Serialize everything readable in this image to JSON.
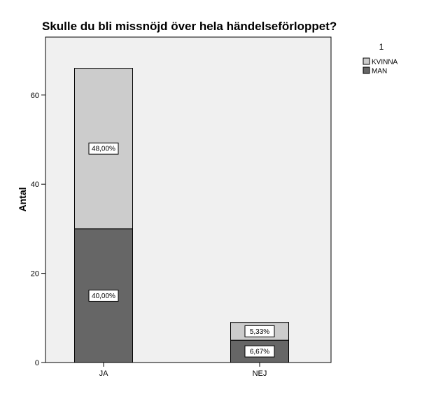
{
  "chart_data": {
    "type": "bar",
    "stacked": true,
    "title": "Skulle du bli missnöjd över hela händelseförloppet?",
    "xlabel": "",
    "ylabel": "Antal",
    "categories": [
      "JA",
      "NEJ"
    ],
    "ylim": [
      0,
      73
    ],
    "yticks": [
      0,
      20,
      40,
      60
    ],
    "grid": false,
    "legend": {
      "title": "1",
      "position": "top-right"
    },
    "series": [
      {
        "name": "MAN",
        "color": "#666666",
        "values": [
          30,
          5
        ],
        "labels": [
          "40,00%",
          "6,67%"
        ]
      },
      {
        "name": "KVINNA",
        "color": "#cccccc",
        "values": [
          36,
          4
        ],
        "labels": [
          "48,00%",
          "5,33%"
        ]
      }
    ],
    "legend_order": [
      "KVINNA",
      "MAN"
    ],
    "plot_background": "#f0f0f0"
  }
}
